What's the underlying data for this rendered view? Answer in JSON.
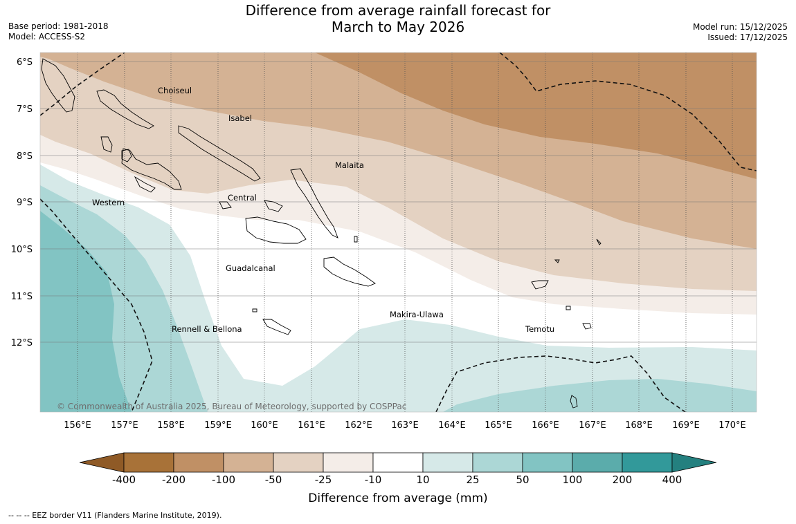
{
  "title_line1": "Difference from average rainfall forecast for",
  "title_line2": "March to May 2026",
  "base_period": "Base period: 1981-2018",
  "model": "Model: ACCESS-S2",
  "model_run": "Model run: 15/12/2025",
  "issued": "Issued: 17/12/2025",
  "lat_labels": [
    "6°S",
    "7°S",
    "8°S",
    "9°S",
    "10°S",
    "11°S",
    "12°S"
  ],
  "lon_labels": [
    "156°E",
    "157°E",
    "158°E",
    "159°E",
    "160°E",
    "161°E",
    "162°E",
    "163°E",
    "164°E",
    "165°E",
    "166°E",
    "167°E",
    "168°E",
    "169°E",
    "170°E"
  ],
  "regions": [
    "Choiseul",
    "Isabel",
    "Malaita",
    "Western",
    "Central",
    "Guadalcanal",
    "Makira-Ulawa",
    "Rennell & Bellona",
    "Temotu"
  ],
  "copyright": "© Commonwealth of Australia 2025, Bureau of Meteorology, supported by COSPPac",
  "colorbar": {
    "ticks": [
      "-400",
      "-200",
      "-100",
      "-50",
      "-25",
      "-10",
      "10",
      "25",
      "50",
      "100",
      "200",
      "400"
    ],
    "colors": [
      "#a87238",
      "#c09065",
      "#d4b294",
      "#e4d2c2",
      "#f4ede8",
      "#ffffff",
      "#d6e9e8",
      "#acd7d6",
      "#82c4c3",
      "#5bacab",
      "#32999a"
    ],
    "extend_low_color": "#8f5a26",
    "extend_high_color": "#24807f",
    "label": "Difference from average (mm)"
  },
  "footnote": "--  --  -- EEZ border V11 (Flanders Marine Institute, 2019)."
}
